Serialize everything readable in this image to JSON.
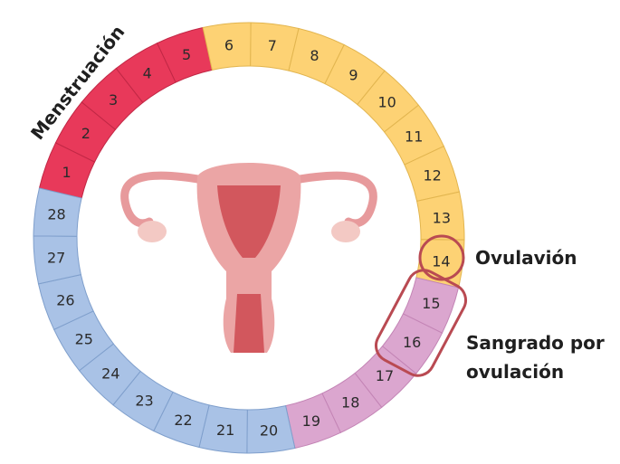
{
  "title": "Menstruación",
  "days": [
    1,
    2,
    3,
    4,
    5,
    6,
    7,
    8,
    9,
    10,
    11,
    12,
    13,
    14,
    15,
    16,
    17,
    18,
    19,
    20,
    21,
    22,
    23,
    24,
    25,
    26,
    27,
    28
  ],
  "annotations": {
    "ovulation": "Ovulavión",
    "ovulation_bleeding": [
      "Sangrado por",
      "ovulación"
    ]
  }
}
